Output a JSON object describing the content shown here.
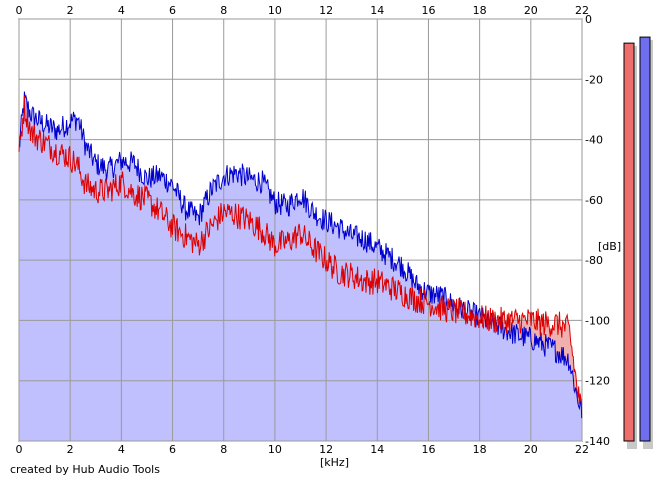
{
  "chart_data": {
    "type": "area",
    "title": "",
    "xlabel": "[kHz]",
    "ylabel": "[dB]",
    "xlim": [
      0,
      22
    ],
    "ylim": [
      -140,
      0
    ],
    "x_ticks": [
      "0",
      "2",
      "4",
      "6",
      "8",
      "10",
      "12",
      "14",
      "16",
      "18",
      "20",
      "22"
    ],
    "y_ticks": [
      "0",
      "-20",
      "-40",
      "-60",
      "-80",
      "-100",
      "-120",
      "-140"
    ],
    "grid": true,
    "footer": "created by Hub Audio Tools",
    "series": [
      {
        "color": "#0000cc",
        "fill": "#c0c0ff",
        "x": [
          0,
          0.2,
          0.5,
          1,
          1.5,
          2,
          2.3,
          2.6,
          3,
          3.5,
          4,
          4.5,
          5,
          5.5,
          6,
          6.5,
          7,
          7.5,
          8,
          8.5,
          9,
          9.5,
          10,
          10.5,
          11,
          11.5,
          12,
          12.5,
          13,
          13.5,
          14,
          14.5,
          15,
          15.5,
          16,
          16.5,
          17,
          17.5,
          18,
          18.5,
          19,
          19.5,
          20,
          20.5,
          21,
          21.5,
          21.8,
          22
        ],
        "values": [
          -43,
          -27,
          -32,
          -35,
          -37,
          -34,
          -33,
          -42,
          -48,
          -50,
          -47,
          -48,
          -53,
          -52,
          -55,
          -63,
          -66,
          -57,
          -52,
          -51,
          -53,
          -54,
          -61,
          -62,
          -58,
          -64,
          -67,
          -69,
          -72,
          -73,
          -76,
          -79,
          -82,
          -88,
          -91,
          -92,
          -95,
          -97,
          -99,
          -101,
          -103,
          -105,
          -106,
          -108,
          -110,
          -113,
          -125,
          -130
        ]
      },
      {
        "color": "#dd0000",
        "fill": "#f0b0b0",
        "x": [
          0,
          0.2,
          0.5,
          1,
          1.5,
          2,
          2.3,
          2.6,
          3,
          3.5,
          4,
          4.5,
          5,
          5.5,
          6,
          6.5,
          7,
          7.5,
          8,
          8.5,
          9,
          9.5,
          10,
          10.5,
          11,
          11.5,
          12,
          12.5,
          13,
          13.5,
          14,
          14.5,
          15,
          15.5,
          16,
          16.5,
          17,
          17.5,
          18,
          18.5,
          19,
          19.5,
          20,
          20.5,
          21,
          21.5,
          21.8,
          22
        ],
        "values": [
          -45,
          -29,
          -38,
          -41,
          -44,
          -46,
          -49,
          -55,
          -57,
          -57,
          -54,
          -58,
          -60,
          -64,
          -69,
          -72,
          -75,
          -69,
          -64,
          -65,
          -67,
          -70,
          -75,
          -74,
          -71,
          -76,
          -80,
          -84,
          -85,
          -87,
          -87,
          -89,
          -91,
          -93,
          -94,
          -96,
          -97,
          -98,
          -99,
          -100,
          -100,
          -100,
          -100,
          -101,
          -101,
          -103,
          -122,
          -131
        ]
      }
    ],
    "level_meters": [
      {
        "color": "#ee6e6e",
        "value": -8
      },
      {
        "color": "#6e6eee",
        "value": -6
      }
    ]
  }
}
